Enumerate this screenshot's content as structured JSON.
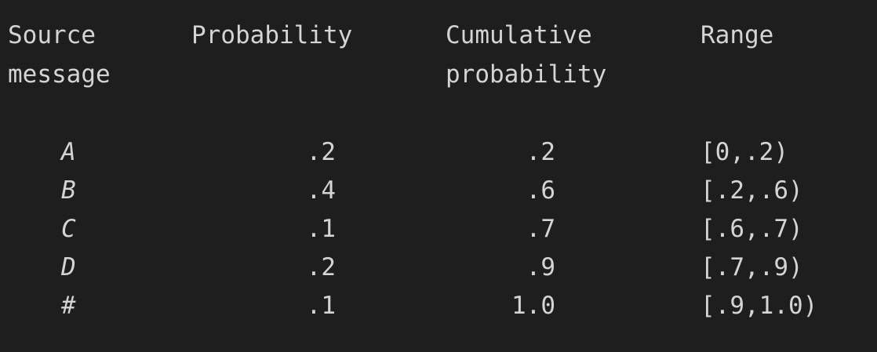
{
  "table": {
    "headers": {
      "source_message": "Source\nmessage",
      "probability": "Probability",
      "cumulative_probability": "Cumulative\nprobability",
      "range": "Range"
    },
    "rows": [
      {
        "message": "A",
        "probability": ".2",
        "cumulative": ".2",
        "range": "[0,.2)"
      },
      {
        "message": "B",
        "probability": ".4",
        "cumulative": ".6",
        "range": "[.2,.6)"
      },
      {
        "message": "C",
        "probability": ".1",
        "cumulative": ".7",
        "range": "[.6,.7)"
      },
      {
        "message": "D",
        "probability": ".2",
        "cumulative": ".9",
        "range": "[.7,.9)"
      },
      {
        "message": "#",
        "probability": ".1",
        "cumulative": "1.0",
        "range": "[.9,1.0)"
      }
    ]
  }
}
